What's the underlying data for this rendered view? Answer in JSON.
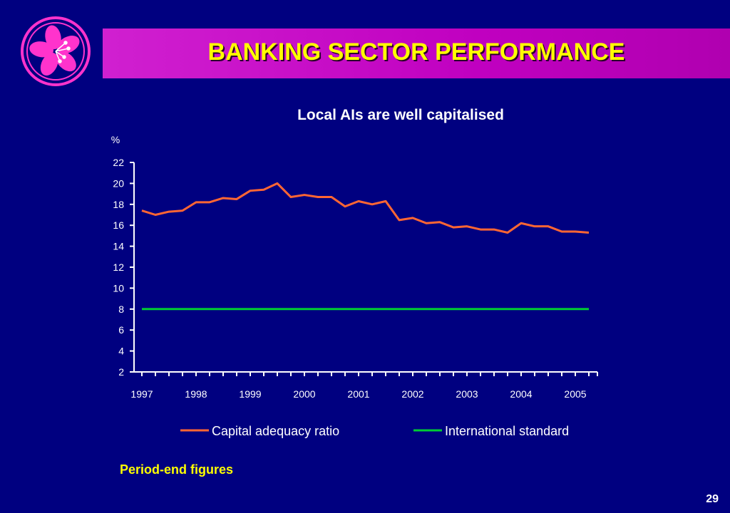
{
  "header": {
    "title": "BANKING SECTOR PERFORMANCE"
  },
  "logo": {
    "icon": "bauhinia-flower-icon",
    "colors": {
      "ring": "#ff33cc",
      "petal": "#ff33cc",
      "center": "#ffffff"
    }
  },
  "colors": {
    "background": "#000080",
    "title_bar": "#c000c0",
    "title_text": "#ffff00",
    "axis": "#ffffff",
    "series_car": "#ff6633",
    "series_std": "#00cc33",
    "footnote": "#ffff00"
  },
  "chart_data": {
    "type": "line",
    "title": "Local AIs are well capitalised",
    "ylabel": "%",
    "ylim": [
      2,
      22
    ],
    "yticks": [
      2,
      4,
      6,
      8,
      10,
      12,
      14,
      16,
      18,
      20,
      22
    ],
    "x_tick_labels": [
      "1997",
      "1998",
      "1999",
      "2000",
      "2001",
      "2002",
      "2003",
      "2004",
      "2005"
    ],
    "x_tick_label_indices": [
      0,
      4,
      8,
      12,
      16,
      20,
      24,
      28,
      32
    ],
    "points_count": 34,
    "grid": false,
    "legend_position": "bottom",
    "series": [
      {
        "name": "Capital adequacy ratio",
        "color": "#ff6633",
        "values": [
          17.4,
          17.0,
          17.3,
          17.4,
          18.2,
          18.2,
          18.6,
          18.5,
          19.3,
          19.4,
          20.0,
          18.7,
          18.9,
          18.7,
          18.7,
          17.8,
          18.3,
          18.0,
          18.3,
          16.5,
          16.7,
          16.2,
          16.3,
          15.8,
          15.9,
          15.6,
          15.6,
          15.3,
          16.2,
          15.9,
          15.9,
          15.4,
          15.4,
          15.3
        ]
      },
      {
        "name": "International standard",
        "color": "#00cc33",
        "values": [
          8,
          8,
          8,
          8,
          8,
          8,
          8,
          8,
          8,
          8,
          8,
          8,
          8,
          8,
          8,
          8,
          8,
          8,
          8,
          8,
          8,
          8,
          8,
          8,
          8,
          8,
          8,
          8,
          8,
          8,
          8,
          8,
          8,
          8
        ]
      }
    ]
  },
  "footnote": "Period-end figures",
  "page_number": "29"
}
